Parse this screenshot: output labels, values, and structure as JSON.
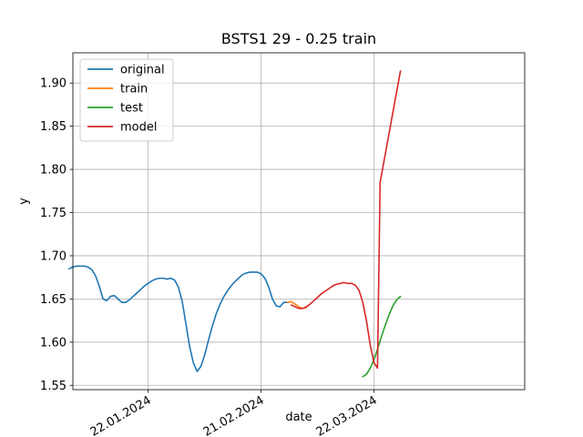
{
  "chart_data": {
    "type": "line",
    "title": "BSTS1 29 - 0.25 train",
    "xlabel": "date",
    "ylabel": "y",
    "xlim": [
      -20,
      100
    ],
    "ylim": [
      1.545,
      1.935
    ],
    "grid": true,
    "legend_position": "top-left",
    "x_unit": "days since 2024-01-22",
    "x_ticks": [
      {
        "value": 0,
        "label": "22.01.2024"
      },
      {
        "value": 30,
        "label": "21.02.2024"
      },
      {
        "value": 60,
        "label": "22.03.2024"
      }
    ],
    "y_ticks": [
      {
        "value": 1.55,
        "label": "1.55"
      },
      {
        "value": 1.6,
        "label": "1.60"
      },
      {
        "value": 1.65,
        "label": "1.65"
      },
      {
        "value": 1.7,
        "label": "1.70"
      },
      {
        "value": 1.75,
        "label": "1.75"
      },
      {
        "value": 1.8,
        "label": "1.80"
      },
      {
        "value": 1.85,
        "label": "1.85"
      },
      {
        "value": 1.9,
        "label": "1.90"
      }
    ],
    "series": [
      {
        "name": "original",
        "color": "#1f77b4",
        "points": [
          [
            -21,
            1.685
          ],
          [
            -20,
            1.687
          ],
          [
            -19,
            1.688
          ],
          [
            -18,
            1.688
          ],
          [
            -17,
            1.688
          ],
          [
            -16,
            1.687
          ],
          [
            -15,
            1.684
          ],
          [
            -14,
            1.677
          ],
          [
            -13,
            1.665
          ],
          [
            -12,
            1.65
          ],
          [
            -11,
            1.648
          ],
          [
            -10,
            1.653
          ],
          [
            -9,
            1.654
          ],
          [
            -8,
            1.65
          ],
          [
            -7,
            1.646
          ],
          [
            -6,
            1.646
          ],
          [
            -5,
            1.649
          ],
          [
            -4,
            1.653
          ],
          [
            -3,
            1.657
          ],
          [
            -2,
            1.661
          ],
          [
            -1,
            1.665
          ],
          [
            0,
            1.668
          ],
          [
            1,
            1.671
          ],
          [
            2,
            1.673
          ],
          [
            3,
            1.674
          ],
          [
            4,
            1.674
          ],
          [
            5,
            1.673
          ],
          [
            6,
            1.674
          ],
          [
            7,
            1.672
          ],
          [
            8,
            1.664
          ],
          [
            9,
            1.648
          ],
          [
            10,
            1.622
          ],
          [
            11,
            1.595
          ],
          [
            12,
            1.576
          ],
          [
            13,
            1.566
          ],
          [
            14,
            1.572
          ],
          [
            15,
            1.585
          ],
          [
            16,
            1.602
          ],
          [
            17,
            1.618
          ],
          [
            18,
            1.632
          ],
          [
            19,
            1.643
          ],
          [
            20,
            1.652
          ],
          [
            21,
            1.659
          ],
          [
            22,
            1.665
          ],
          [
            23,
            1.67
          ],
          [
            24,
            1.674
          ],
          [
            25,
            1.678
          ],
          [
            26,
            1.68
          ],
          [
            27,
            1.681
          ],
          [
            28,
            1.681
          ],
          [
            29,
            1.681
          ],
          [
            30,
            1.679
          ],
          [
            31,
            1.674
          ],
          [
            32,
            1.664
          ],
          [
            33,
            1.65
          ],
          [
            34,
            1.642
          ],
          [
            35,
            1.641
          ],
          [
            36,
            1.646
          ],
          [
            37,
            1.646
          ]
        ]
      },
      {
        "name": "train",
        "color": "#ff7f0e",
        "points": [
          [
            37,
            1.646
          ],
          [
            38,
            1.647
          ],
          [
            39,
            1.644
          ],
          [
            40,
            1.641
          ],
          [
            41,
            1.639
          ],
          [
            42,
            1.64
          ]
        ]
      },
      {
        "name": "test",
        "color": "#2ca02c",
        "points": [
          [
            57,
            1.56
          ],
          [
            58,
            1.563
          ],
          [
            59,
            1.57
          ],
          [
            60,
            1.58
          ],
          [
            61,
            1.593
          ],
          [
            62,
            1.607
          ],
          [
            63,
            1.62
          ],
          [
            64,
            1.632
          ],
          [
            65,
            1.642
          ],
          [
            66,
            1.649
          ],
          [
            67,
            1.653
          ]
        ]
      },
      {
        "name": "model",
        "color": "#d62728",
        "points": [
          [
            38,
            1.643
          ],
          [
            39,
            1.641
          ],
          [
            40,
            1.639
          ],
          [
            41,
            1.639
          ],
          [
            42,
            1.641
          ],
          [
            43,
            1.644
          ],
          [
            44,
            1.648
          ],
          [
            45,
            1.652
          ],
          [
            46,
            1.656
          ],
          [
            47,
            1.659
          ],
          [
            48,
            1.662
          ],
          [
            49,
            1.665
          ],
          [
            50,
            1.667
          ],
          [
            51,
            1.668
          ],
          [
            52,
            1.669
          ],
          [
            53,
            1.668
          ],
          [
            54,
            1.668
          ],
          [
            55,
            1.666
          ],
          [
            56,
            1.66
          ],
          [
            57,
            1.646
          ],
          [
            58,
            1.624
          ],
          [
            59,
            1.596
          ],
          [
            60,
            1.576
          ],
          [
            60.9,
            1.57
          ],
          [
            61.6,
            1.785
          ],
          [
            67,
            1.914
          ]
        ]
      }
    ]
  }
}
